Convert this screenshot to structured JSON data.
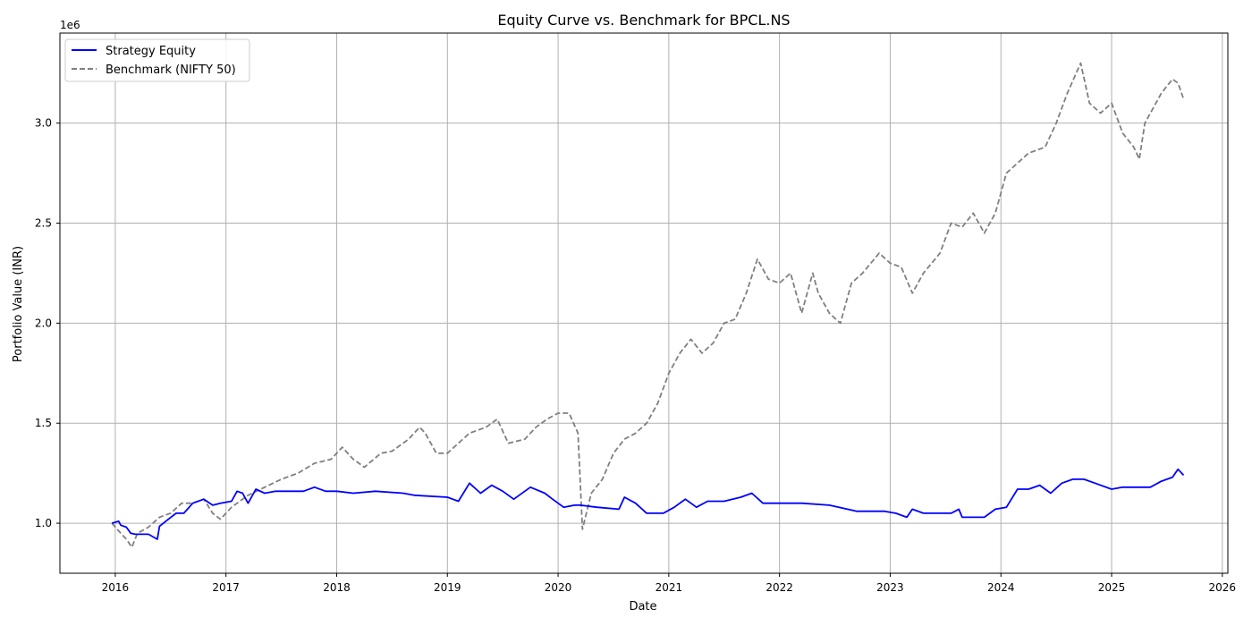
{
  "chart_data": {
    "type": "line",
    "title": "Equity Curve vs. Benchmark for BPCL.NS",
    "xlabel": "Date",
    "ylabel": "Portfolio Value (INR)",
    "y_offset_label": "1e6",
    "xlim": [
      2015.5,
      2026.05
    ],
    "ylim": [
      0.75,
      3.45
    ],
    "x_ticks": [
      2016,
      2017,
      2018,
      2019,
      2020,
      2021,
      2022,
      2023,
      2024,
      2025,
      2026
    ],
    "x_tick_labels": [
      "2016",
      "2017",
      "2018",
      "2019",
      "2020",
      "2021",
      "2022",
      "2023",
      "2024",
      "2025",
      "2026"
    ],
    "y_ticks": [
      1.0,
      1.5,
      2.0,
      2.5,
      3.0
    ],
    "y_tick_labels": [
      "1.0",
      "1.5",
      "2.0",
      "2.5",
      "3.0"
    ],
    "grid": true,
    "legend_position": "upper-left",
    "series": [
      {
        "name": "Strategy Equity",
        "color": "#0000ff",
        "style": "solid",
        "x": [
          2015.97,
          2016.03,
          2016.05,
          2016.1,
          2016.14,
          2016.18,
          2016.3,
          2016.38,
          2016.4,
          2016.48,
          2016.55,
          2016.62,
          2016.7,
          2016.8,
          2016.88,
          2016.95,
          2017.05,
          2017.1,
          2017.15,
          2017.2,
          2017.27,
          2017.35,
          2017.45,
          2017.55,
          2017.7,
          2017.8,
          2017.9,
          2018.0,
          2018.15,
          2018.35,
          2018.6,
          2018.7,
          2019.0,
          2019.1,
          2019.2,
          2019.3,
          2019.4,
          2019.5,
          2019.6,
          2019.75,
          2019.88,
          2019.95,
          2020.05,
          2020.15,
          2020.2,
          2020.35,
          2020.55,
          2020.6,
          2020.7,
          2020.8,
          2020.95,
          2021.05,
          2021.15,
          2021.25,
          2021.35,
          2021.5,
          2021.65,
          2021.75,
          2021.85,
          2022.0,
          2022.15,
          2022.2,
          2022.45,
          2022.7,
          2022.95,
          2023.05,
          2023.15,
          2023.2,
          2023.3,
          2023.55,
          2023.62,
          2023.65,
          2023.7,
          2023.85,
          2023.95,
          2024.05,
          2024.15,
          2024.25,
          2024.35,
          2024.45,
          2024.55,
          2024.65,
          2024.75,
          2024.85,
          2025.0,
          2025.1,
          2025.25,
          2025.35,
          2025.45,
          2025.55,
          2025.6,
          2025.65
        ],
        "y": [
          1.0,
          1.01,
          0.99,
          0.98,
          0.95,
          0.945,
          0.945,
          0.92,
          0.985,
          1.02,
          1.05,
          1.05,
          1.1,
          1.12,
          1.09,
          1.1,
          1.11,
          1.16,
          1.15,
          1.1,
          1.17,
          1.15,
          1.16,
          1.16,
          1.16,
          1.18,
          1.16,
          1.16,
          1.15,
          1.16,
          1.15,
          1.14,
          1.13,
          1.11,
          1.2,
          1.15,
          1.19,
          1.16,
          1.12,
          1.18,
          1.15,
          1.12,
          1.08,
          1.09,
          1.09,
          1.08,
          1.07,
          1.13,
          1.1,
          1.05,
          1.05,
          1.08,
          1.12,
          1.08,
          1.11,
          1.11,
          1.13,
          1.15,
          1.1,
          1.1,
          1.1,
          1.1,
          1.09,
          1.06,
          1.06,
          1.05,
          1.03,
          1.07,
          1.05,
          1.05,
          1.07,
          1.03,
          1.03,
          1.03,
          1.07,
          1.08,
          1.17,
          1.17,
          1.19,
          1.15,
          1.2,
          1.22,
          1.22,
          1.2,
          1.17,
          1.18,
          1.18,
          1.18,
          1.21,
          1.23,
          1.27,
          1.24
        ]
      },
      {
        "name": "Benchmark (NIFTY 50)",
        "color": "#808080",
        "style": "dashed",
        "x": [
          2015.97,
          2016.05,
          2016.1,
          2016.15,
          2016.2,
          2016.3,
          2016.4,
          2016.5,
          2016.6,
          2016.7,
          2016.8,
          2016.88,
          2016.95,
          2017.05,
          2017.2,
          2017.35,
          2017.5,
          2017.65,
          2017.8,
          2017.95,
          2018.05,
          2018.15,
          2018.25,
          2018.4,
          2018.5,
          2018.65,
          2018.75,
          2018.8,
          2018.9,
          2019.0,
          2019.1,
          2019.2,
          2019.35,
          2019.45,
          2019.55,
          2019.7,
          2019.8,
          2019.9,
          2020.0,
          2020.1,
          2020.18,
          2020.22,
          2020.3,
          2020.4,
          2020.5,
          2020.6,
          2020.7,
          2020.8,
          2020.9,
          2021.0,
          2021.1,
          2021.2,
          2021.3,
          2021.4,
          2021.5,
          2021.6,
          2021.7,
          2021.8,
          2021.9,
          2022.0,
          2022.1,
          2022.2,
          2022.3,
          2022.35,
          2022.45,
          2022.55,
          2022.65,
          2022.75,
          2022.9,
          2023.0,
          2023.1,
          2023.2,
          2023.3,
          2023.45,
          2023.55,
          2023.65,
          2023.75,
          2023.85,
          2023.95,
          2024.05,
          2024.15,
          2024.25,
          2024.4,
          2024.5,
          2024.6,
          2024.72,
          2024.8,
          2024.9,
          2025.0,
          2025.1,
          2025.2,
          2025.25,
          2025.3,
          2025.45,
          2025.55,
          2025.6,
          2025.65
        ],
        "y": [
          1.0,
          0.95,
          0.92,
          0.88,
          0.95,
          0.98,
          1.03,
          1.05,
          1.1,
          1.1,
          1.12,
          1.05,
          1.02,
          1.08,
          1.14,
          1.18,
          1.22,
          1.25,
          1.3,
          1.32,
          1.38,
          1.32,
          1.28,
          1.35,
          1.36,
          1.42,
          1.48,
          1.45,
          1.35,
          1.35,
          1.4,
          1.45,
          1.48,
          1.52,
          1.4,
          1.42,
          1.48,
          1.52,
          1.55,
          1.55,
          1.45,
          0.97,
          1.15,
          1.22,
          1.35,
          1.42,
          1.45,
          1.5,
          1.6,
          1.75,
          1.85,
          1.92,
          1.85,
          1.9,
          2.0,
          2.02,
          2.15,
          2.32,
          2.22,
          2.2,
          2.25,
          2.05,
          2.25,
          2.15,
          2.05,
          2.0,
          2.2,
          2.25,
          2.35,
          2.3,
          2.28,
          2.15,
          2.25,
          2.35,
          2.5,
          2.48,
          2.55,
          2.45,
          2.55,
          2.75,
          2.8,
          2.85,
          2.88,
          3.0,
          3.15,
          3.3,
          3.1,
          3.05,
          3.1,
          2.95,
          2.88,
          2.82,
          3.0,
          3.15,
          3.22,
          3.2,
          3.12
        ]
      }
    ]
  }
}
